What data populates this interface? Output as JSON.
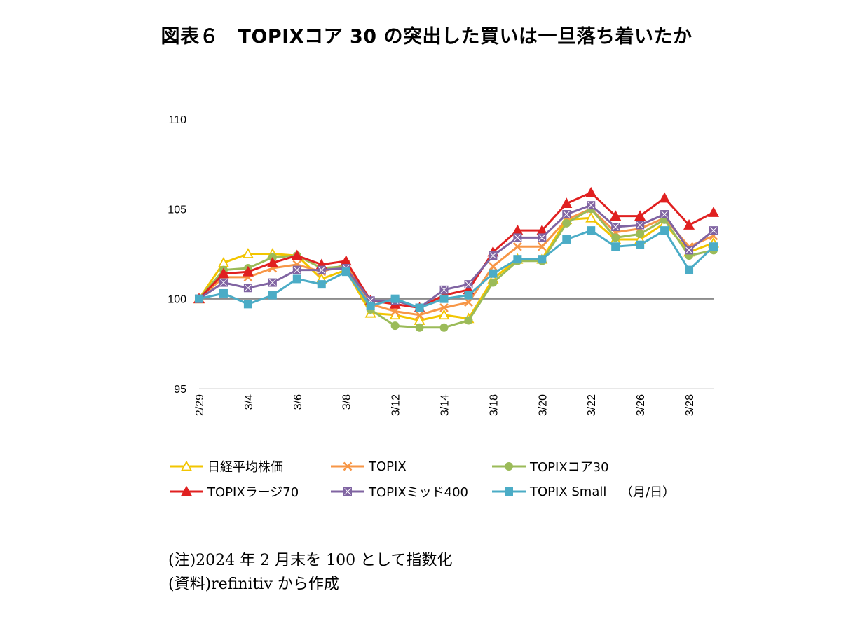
{
  "title": "図表６　TOPIXコア 30 の突出した買いは一旦落ち着いたか",
  "chart_data": {
    "type": "line",
    "ylim": [
      95,
      110
    ],
    "yticks": [
      95,
      100,
      105,
      110
    ],
    "baseline": 100,
    "x_count": 22,
    "x_tick_labels": [
      {
        "index": 0,
        "label": "2/29"
      },
      {
        "index": 2,
        "label": "3/4"
      },
      {
        "index": 4,
        "label": "3/6"
      },
      {
        "index": 6,
        "label": "3/8"
      },
      {
        "index": 8,
        "label": "3/12"
      },
      {
        "index": 10,
        "label": "3/14"
      },
      {
        "index": 12,
        "label": "3/18"
      },
      {
        "index": 14,
        "label": "3/20"
      },
      {
        "index": 16,
        "label": "3/22"
      },
      {
        "index": 18,
        "label": "3/26"
      },
      {
        "index": 20,
        "label": "3/28"
      }
    ],
    "unit_label": "（月/日）",
    "series": [
      {
        "name": "日経平均株価",
        "color": "#f2c500",
        "marker": "triangle-open",
        "values": [
          100.0,
          102.0,
          102.5,
          102.5,
          102.4,
          101.1,
          101.6,
          99.2,
          99.1,
          98.8,
          99.1,
          98.9,
          101.1,
          102.2,
          102.2,
          104.4,
          104.5,
          103.3,
          103.3,
          104.2,
          102.6,
          103.1
        ]
      },
      {
        "name": "TOPIX",
        "color": "#f79646",
        "marker": "x",
        "values": [
          100.0,
          101.2,
          101.2,
          101.7,
          101.9,
          101.5,
          101.9,
          99.7,
          99.3,
          99.1,
          99.5,
          99.8,
          101.8,
          102.9,
          102.9,
          104.4,
          105.0,
          103.7,
          103.9,
          104.5,
          102.9,
          103.5
        ]
      },
      {
        "name": "TOPIXコア30",
        "color": "#9bbb59",
        "marker": "circle",
        "values": [
          100.0,
          101.6,
          101.7,
          102.3,
          102.4,
          101.7,
          101.8,
          99.4,
          98.5,
          98.4,
          98.4,
          98.8,
          100.9,
          102.1,
          102.1,
          104.2,
          105.0,
          103.4,
          103.6,
          104.4,
          102.4,
          102.7
        ]
      },
      {
        "name": "TOPIXラージ70",
        "color": "#e02020",
        "marker": "triangle-filled",
        "values": [
          100.0,
          101.4,
          101.5,
          102.0,
          102.4,
          101.9,
          102.1,
          99.9,
          99.7,
          99.5,
          100.2,
          100.5,
          102.6,
          103.8,
          103.8,
          105.3,
          105.9,
          104.6,
          104.6,
          105.6,
          104.1,
          104.8
        ]
      },
      {
        "name": "TOPIXミッド400",
        "color": "#8064a2",
        "marker": "square-x",
        "values": [
          100.0,
          100.9,
          100.6,
          100.9,
          101.6,
          101.6,
          101.7,
          99.9,
          99.9,
          99.5,
          100.5,
          100.8,
          102.4,
          103.4,
          103.4,
          104.7,
          105.2,
          104.0,
          104.1,
          104.7,
          102.7,
          103.8
        ]
      },
      {
        "name": "TOPIX Small",
        "color": "#4bacc6",
        "marker": "square",
        "values": [
          100.0,
          100.3,
          99.7,
          100.2,
          101.1,
          100.8,
          101.5,
          99.6,
          100.0,
          99.5,
          100.0,
          100.2,
          101.4,
          102.2,
          102.2,
          103.3,
          103.8,
          102.9,
          103.0,
          103.8,
          101.6,
          102.9
        ]
      }
    ]
  },
  "notes": {
    "note": "(注)2024 年 2 月末を 100 として指数化",
    "source": "(資料)refinitiv から作成"
  }
}
